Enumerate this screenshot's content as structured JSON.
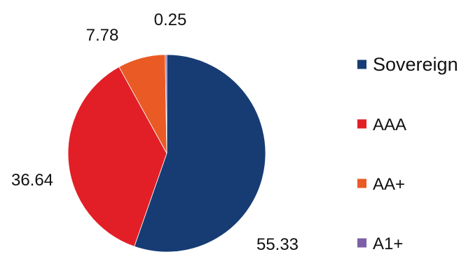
{
  "chart_data": {
    "type": "pie",
    "title": "",
    "slices": [
      {
        "label": "Sovereign",
        "value": 55.33,
        "value_label": "55.33",
        "color": "#173C73"
      },
      {
        "label": "AAA",
        "value": 36.64,
        "value_label": "36.64",
        "color": "#E21F26"
      },
      {
        "label": "AA+",
        "value": 7.78,
        "value_label": "7.78",
        "color": "#EA5A24"
      },
      {
        "label": "A1+",
        "value": 0.25,
        "value_label": "0.25",
        "color": "#7C5FA5"
      }
    ],
    "start_angle_deg": 0,
    "direction": "clockwise",
    "legend_position": "right"
  }
}
